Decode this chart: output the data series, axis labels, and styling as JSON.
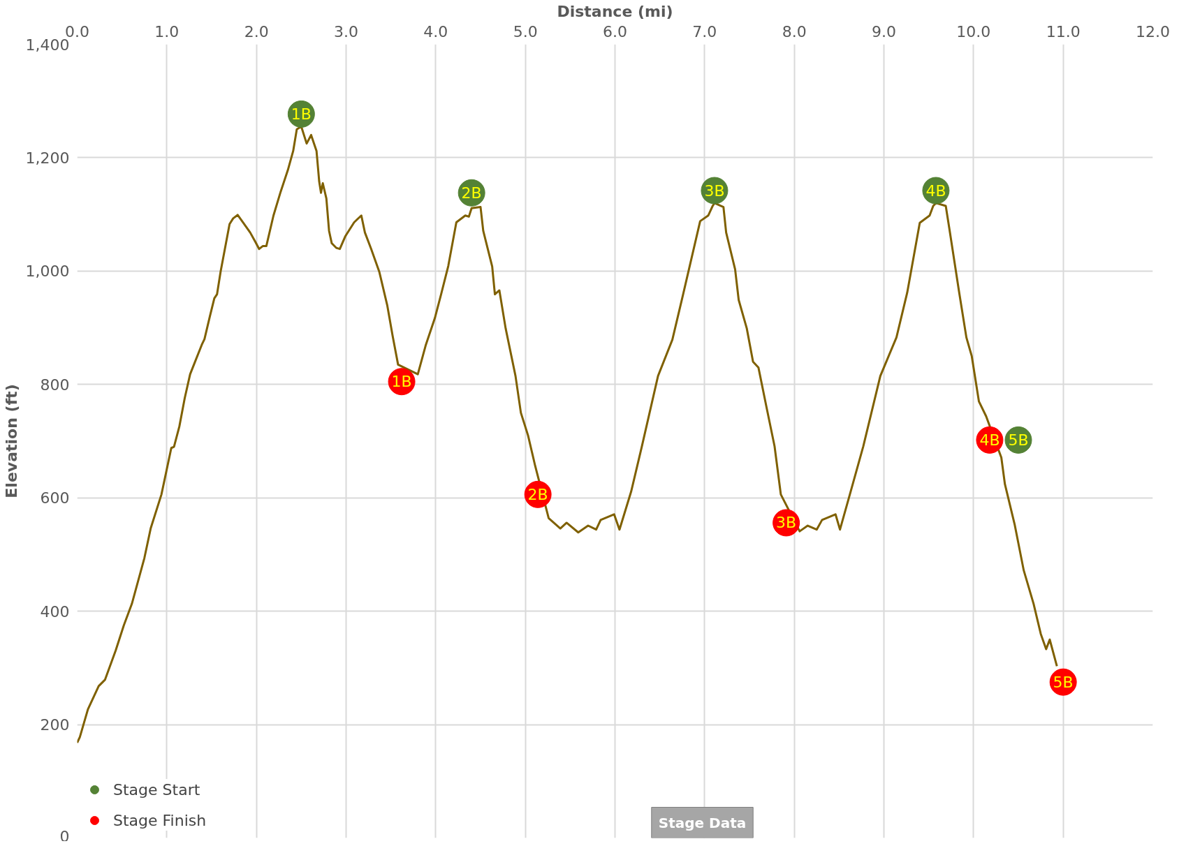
{
  "chart_data": {
    "type": "line",
    "xlabel": "Distance (mi)",
    "ylabel": "Elevation (ft)",
    "xlim": [
      0,
      12
    ],
    "ylim": [
      0,
      1400
    ],
    "xticks": [
      {
        "value": 0,
        "label": "0.0"
      },
      {
        "value": 1,
        "label": "1.0"
      },
      {
        "value": 2,
        "label": "2.0"
      },
      {
        "value": 3,
        "label": "3.0"
      },
      {
        "value": 4,
        "label": "4.0"
      },
      {
        "value": 5,
        "label": "5.0"
      },
      {
        "value": 6,
        "label": "6.0"
      },
      {
        "value": 7,
        "label": "7.0"
      },
      {
        "value": 8,
        "label": "8.0"
      },
      {
        "value": 9,
        "label": "9.0"
      },
      {
        "value": 10,
        "label": "10.0"
      },
      {
        "value": 11,
        "label": "11.0"
      },
      {
        "value": 12,
        "label": "12.0"
      }
    ],
    "yticks": [
      0,
      200,
      400,
      600,
      800,
      {
        "value": 1000,
        "label": "1,000"
      },
      {
        "value": 1200,
        "label": "1,200"
      },
      {
        "value": 1400,
        "label": "1,400"
      }
    ],
    "grid": true,
    "legend": "bottom left",
    "series": [
      {
        "color": "#7f6000",
        "marker": "none",
        "x": [
          0,
          0.03,
          0.12,
          0.24,
          0.31,
          0.43,
          0.52,
          0.61,
          0.75,
          0.82,
          0.94,
          1.05,
          1.08,
          1.14,
          1.2,
          1.26,
          1.31,
          1.39,
          1.42,
          1.48,
          1.53,
          1.56,
          1.6,
          1.7,
          1.74,
          1.79,
          1.85,
          1.93,
          1.99,
          2.03,
          2.07,
          2.11,
          2.19,
          2.27,
          2.35,
          2.41,
          2.45,
          2.5,
          2.56,
          2.61,
          2.67,
          2.7,
          2.72,
          2.74,
          2.78,
          2.81,
          2.84,
          2.89,
          2.93,
          2.99,
          3.09,
          3.17,
          3.21,
          3.28,
          3.37,
          3.46,
          3.52,
          3.58,
          3.8,
          3.89,
          3.99,
          4.06,
          4.14,
          4.23,
          4.33,
          4.37,
          4.4,
          4.5,
          4.53,
          4.63,
          4.66,
          4.71,
          4.78,
          4.89,
          4.95,
          5.03,
          5.11,
          5.26,
          5.39,
          5.46,
          5.59,
          5.7,
          5.79,
          5.84,
          5.99,
          6.05,
          6.18,
          6.3,
          6.48,
          6.64,
          6.76,
          6.95,
          7.04,
          7.09,
          7.11,
          7.21,
          7.24,
          7.34,
          7.38,
          7.47,
          7.54,
          7.6,
          7.69,
          7.78,
          7.85,
          8.06,
          8.15,
          8.25,
          8.31,
          8.46,
          8.51,
          8.62,
          8.77,
          8.96,
          9.14,
          9.26,
          9.4,
          9.51,
          9.55,
          9.58,
          9.69,
          9.73,
          9.84,
          9.92,
          9.98,
          10.06,
          10.14,
          10.31,
          10.35,
          10.46,
          10.56,
          10.67,
          10.75,
          10.81,
          10.85,
          10.93
        ],
        "values": [
          168,
          178,
          227,
          268,
          279,
          331,
          375,
          413,
          494,
          546,
          606,
          688,
          690,
          726,
          776,
          818,
          838,
          870,
          880,
          920,
          952,
          959,
          999,
          1083,
          1093,
          1099,
          1086,
          1068,
          1051,
          1039,
          1044,
          1044,
          1098,
          1140,
          1178,
          1212,
          1250,
          1255,
          1225,
          1240,
          1212,
          1158,
          1138,
          1155,
          1128,
          1071,
          1049,
          1041,
          1039,
          1061,
          1086,
          1098,
          1068,
          1039,
          999,
          939,
          885,
          835,
          818,
          870,
          917,
          959,
          1009,
          1086,
          1098,
          1096,
          1111,
          1113,
          1071,
          1008,
          959,
          966,
          899,
          815,
          750,
          710,
          656,
          564,
          546,
          556,
          539,
          551,
          544,
          561,
          571,
          544,
          611,
          691,
          815,
          879,
          959,
          1088,
          1098,
          1115,
          1120,
          1113,
          1068,
          1003,
          949,
          899,
          840,
          830,
          760,
          691,
          606,
          541,
          551,
          544,
          561,
          571,
          544,
          606,
          691,
          815,
          883,
          962,
          1085,
          1098,
          1115,
          1120,
          1115,
          1075,
          962,
          883,
          850,
          770,
          744,
          671,
          624,
          552,
          472,
          413,
          360,
          333,
          350,
          303
        ]
      },
      {
        "type": "scatter",
        "name": "Stage Start",
        "color": "#548235",
        "marker": "circle",
        "x": [
          2.5,
          4.4,
          7.11,
          9.58,
          10.5
        ],
        "values": [
          1277,
          1138,
          1142,
          1142,
          702
        ]
      },
      {
        "type": "scatter",
        "name": "Stage Finish",
        "color": "#ff0000",
        "marker": "circle",
        "x": [
          3.62,
          5.14,
          7.91,
          10.18,
          11.0
        ],
        "values": [
          805,
          606,
          556,
          702,
          275
        ]
      }
    ],
    "annotations": [
      {
        "text": "1B",
        "x": 2.5,
        "y": 1277
      },
      {
        "text": "2B",
        "x": 4.4,
        "y": 1138
      },
      {
        "text": "3B",
        "x": 7.11,
        "y": 1142
      },
      {
        "text": "4B",
        "x": 9.58,
        "y": 1142
      },
      {
        "text": "5B",
        "x": 10.5,
        "y": 702
      },
      {
        "text": "1B",
        "x": 3.62,
        "y": 805
      },
      {
        "text": "2B",
        "x": 5.14,
        "y": 606
      },
      {
        "text": "3B",
        "x": 7.91,
        "y": 556
      },
      {
        "text": "4B",
        "x": 10.18,
        "y": 702
      },
      {
        "text": "5B",
        "x": 11.0,
        "y": 275
      },
      "Stage Data"
    ]
  }
}
